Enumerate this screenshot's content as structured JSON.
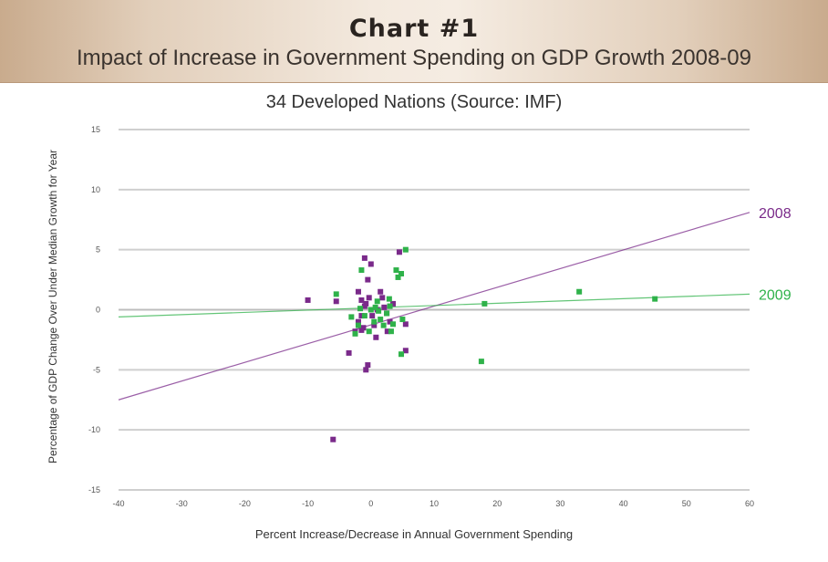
{
  "chart_data": {
    "type": "scatter",
    "title": "Chart #1",
    "heading": "Impact of Increase in Government Spending on GDP Growth 2008-09",
    "subtitle": "34 Developed Nations (Source: IMF)",
    "xlabel": "Percent Increase/Decrease in Annual Government Spending",
    "ylabel": "Percentage of GDP Change Over Under Median Growth for Year",
    "xlim": [
      -40,
      60
    ],
    "ylim": [
      -15,
      15
    ],
    "xticks": [
      -40,
      -30,
      -20,
      -10,
      0,
      10,
      20,
      30,
      40,
      50,
      60
    ],
    "yticks": [
      -15,
      -10,
      -5,
      0,
      5,
      10,
      15
    ],
    "grid": "horizontal",
    "series": [
      {
        "name": "2008",
        "color": "#7a2a8a",
        "points": [
          [
            -10,
            0.8
          ],
          [
            -5.5,
            0.7
          ],
          [
            -6,
            -10.8
          ],
          [
            -3.5,
            -3.6
          ],
          [
            -2,
            1.5
          ],
          [
            -1.5,
            0.8
          ],
          [
            -1,
            4.3
          ],
          [
            -0.5,
            2.5
          ],
          [
            0,
            3.8
          ],
          [
            -1,
            0.3
          ],
          [
            -1.5,
            -0.5
          ],
          [
            -2,
            -1
          ],
          [
            -2.5,
            -1.8
          ],
          [
            -1.2,
            -1.5
          ],
          [
            -0.8,
            0.5
          ],
          [
            -0.3,
            1
          ],
          [
            0.2,
            -0.5
          ],
          [
            0.5,
            -1.3
          ],
          [
            1,
            0
          ],
          [
            1.5,
            1.5
          ],
          [
            1.8,
            1
          ],
          [
            2.5,
            -0.3
          ],
          [
            3,
            -1
          ],
          [
            3.5,
            0.5
          ],
          [
            -0.5,
            -4.6
          ],
          [
            -0.8,
            -5
          ],
          [
            -1.5,
            -1.7
          ],
          [
            4.5,
            4.8
          ],
          [
            5.5,
            -1.2
          ],
          [
            5.5,
            -3.4
          ],
          [
            0.8,
            -2.3
          ],
          [
            2.6,
            -1.8
          ],
          [
            2.1,
            0.2
          ]
        ],
        "trend": [
          [
            -40,
            -7.5
          ],
          [
            60,
            8.1
          ]
        ],
        "end_label": "2008"
      },
      {
        "name": "2009",
        "color": "#2fb24a",
        "points": [
          [
            -5.5,
            1.3
          ],
          [
            -1.5,
            3.3
          ],
          [
            -2,
            -1.3
          ],
          [
            -2.5,
            -2
          ],
          [
            -1,
            -0.5
          ],
          [
            0,
            0
          ],
          [
            0.5,
            -1
          ],
          [
            1,
            0.7
          ],
          [
            1.5,
            -0.8
          ],
          [
            2,
            -1.3
          ],
          [
            2.5,
            -0.3
          ],
          [
            3,
            0.3
          ],
          [
            3.5,
            -1.2
          ],
          [
            4,
            3.3
          ],
          [
            4.3,
            2.7
          ],
          [
            4.8,
            3
          ],
          [
            5,
            -0.8
          ],
          [
            5.5,
            5
          ],
          [
            4.8,
            -3.7
          ],
          [
            -0.3,
            -1.8
          ],
          [
            0.7,
            0.2
          ],
          [
            1.2,
            -0.1
          ],
          [
            3.2,
            -1.8
          ],
          [
            -1.7,
            0.1
          ],
          [
            18,
            0.5
          ],
          [
            17.5,
            -4.3
          ],
          [
            33,
            1.5
          ],
          [
            45,
            0.9
          ],
          [
            2.9,
            0.9
          ],
          [
            -3.1,
            -0.6
          ]
        ],
        "trend": [
          [
            -40,
            -0.6
          ],
          [
            60,
            1.3
          ]
        ],
        "end_label": "2009"
      }
    ]
  }
}
